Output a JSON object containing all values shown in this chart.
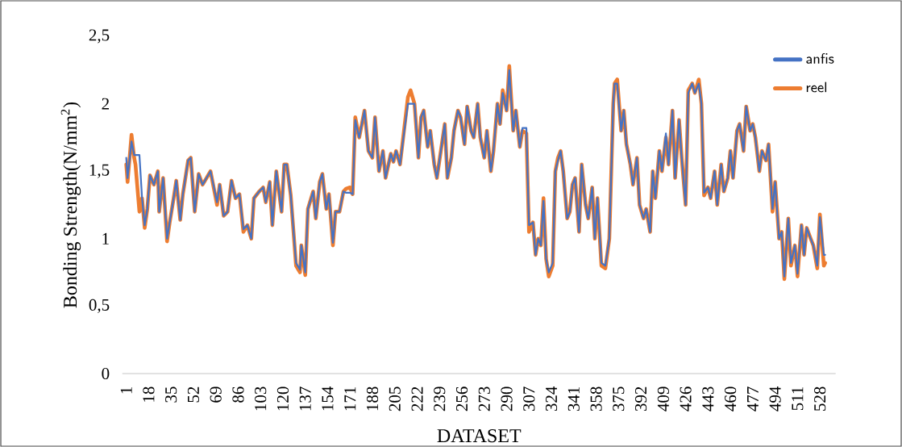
{
  "chart_data": {
    "type": "line",
    "xlabel": "DATASET",
    "ylabel": "Bonding  Strength(N/mm$^{2}$)",
    "x": [
      1,
      2,
      5,
      7,
      8,
      11,
      13,
      15,
      17,
      19,
      22,
      25,
      26,
      29,
      32,
      34,
      37,
      39,
      42,
      44,
      48,
      50,
      53,
      56,
      59,
      62,
      65,
      70,
      72,
      75,
      78,
      81,
      84,
      87,
      90,
      93,
      96,
      98,
      102,
      105,
      107,
      110,
      112,
      115,
      119,
      121,
      123,
      126,
      130,
      133,
      134,
      137,
      139,
      143,
      145,
      148,
      150,
      153,
      155,
      158,
      160,
      163,
      166,
      168,
      171,
      173,
      175,
      178,
      182,
      185,
      188,
      190,
      193,
      196,
      198,
      202,
      204,
      206,
      209,
      212,
      215,
      217,
      220,
      223,
      225,
      227,
      230,
      232,
      235,
      237,
      240,
      243,
      245,
      248,
      250,
      253,
      255,
      258,
      260,
      263,
      265,
      268,
      270,
      273,
      275,
      278,
      280,
      283,
      285,
      287,
      290,
      292,
      295,
      297,
      300,
      302,
      305,
      307,
      310,
      312,
      314,
      316,
      318,
      320,
      322,
      325,
      327,
      329,
      331,
      333,
      336,
      338,
      340,
      342,
      345,
      347,
      350,
      352,
      355,
      357,
      359,
      362,
      365,
      368,
      371,
      372,
      374,
      377,
      379,
      381,
      384,
      386,
      389,
      391,
      394,
      396,
      399,
      401,
      403,
      406,
      408,
      411,
      413,
      416,
      418,
      421,
      423,
      426,
      428,
      431,
      433,
      436,
      438,
      440,
      443,
      445,
      448,
      450,
      453,
      455,
      458,
      460,
      462,
      465,
      467,
      470,
      472,
      475,
      477,
      479,
      482,
      484,
      487,
      489,
      492,
      494,
      497,
      499,
      501,
      504,
      506,
      509,
      511,
      514,
      516,
      518,
      521,
      523,
      526,
      528,
      531,
      532
    ],
    "series": [
      {
        "name": "anfis",
        "color": "#4472c4",
        "values": [
          1.6,
          1.45,
          1.72,
          1.62,
          1.62,
          1.62,
          1.3,
          1.1,
          1.22,
          1.47,
          1.4,
          1.5,
          1.2,
          1.45,
          1.0,
          1.12,
          1.3,
          1.43,
          1.14,
          1.33,
          1.58,
          1.6,
          1.2,
          1.48,
          1.4,
          1.45,
          1.5,
          1.27,
          1.4,
          1.17,
          1.2,
          1.43,
          1.3,
          1.33,
          1.07,
          1.1,
          1.0,
          1.3,
          1.35,
          1.38,
          1.27,
          1.42,
          1.1,
          1.5,
          1.2,
          1.55,
          1.55,
          1.32,
          0.82,
          0.77,
          0.95,
          0.75,
          1.22,
          1.35,
          1.15,
          1.42,
          1.48,
          1.22,
          1.33,
          0.97,
          1.2,
          1.2,
          1.35,
          1.34,
          1.34,
          1.33,
          1.88,
          1.75,
          1.95,
          1.65,
          1.6,
          1.9,
          1.5,
          1.65,
          1.45,
          1.63,
          1.57,
          1.65,
          1.55,
          1.78,
          2.0,
          2.0,
          2.0,
          1.6,
          1.9,
          1.95,
          1.68,
          1.8,
          1.55,
          1.45,
          1.65,
          1.85,
          1.45,
          1.6,
          1.8,
          1.95,
          1.9,
          1.7,
          1.98,
          1.8,
          1.75,
          2.0,
          1.75,
          1.6,
          1.8,
          1.5,
          1.65,
          2.0,
          1.85,
          2.08,
          1.95,
          2.25,
          1.8,
          1.95,
          1.68,
          1.82,
          1.82,
          1.1,
          1.12,
          0.88,
          1.0,
          0.95,
          1.28,
          0.85,
          0.75,
          0.82,
          1.5,
          1.58,
          1.65,
          1.5,
          1.15,
          1.2,
          1.4,
          1.45,
          1.05,
          1.55,
          1.25,
          1.15,
          1.38,
          1.0,
          1.3,
          0.82,
          0.8,
          1.0,
          2.0,
          2.15,
          2.15,
          1.8,
          1.95,
          1.7,
          1.55,
          1.4,
          1.6,
          1.25,
          1.15,
          1.22,
          1.05,
          1.5,
          1.3,
          1.65,
          1.5,
          1.78,
          1.55,
          1.95,
          1.45,
          1.88,
          1.6,
          1.25,
          2.08,
          2.15,
          2.08,
          2.15,
          2.0,
          1.34,
          1.38,
          1.3,
          1.5,
          1.25,
          1.55,
          1.35,
          1.45,
          1.65,
          1.45,
          1.8,
          1.85,
          1.65,
          1.98,
          1.8,
          1.85,
          1.75,
          1.5,
          1.65,
          1.58,
          1.7,
          1.22,
          1.42,
          1.0,
          1.05,
          0.72,
          1.15,
          0.82,
          0.95,
          0.74,
          1.1,
          0.88,
          1.08,
          1.0,
          0.95,
          0.8,
          1.16,
          0.88,
          0.88
        ]
      },
      {
        "name": "reel",
        "color": "#ed7d31",
        "values": [
          1.55,
          1.42,
          1.77,
          1.6,
          1.55,
          1.2,
          1.3,
          1.08,
          1.22,
          1.47,
          1.4,
          1.5,
          1.2,
          1.45,
          0.98,
          1.12,
          1.3,
          1.43,
          1.14,
          1.33,
          1.58,
          1.6,
          1.2,
          1.48,
          1.4,
          1.45,
          1.5,
          1.25,
          1.4,
          1.17,
          1.2,
          1.43,
          1.3,
          1.33,
          1.05,
          1.1,
          1.0,
          1.3,
          1.35,
          1.38,
          1.27,
          1.42,
          1.1,
          1.5,
          1.2,
          1.55,
          1.55,
          1.32,
          0.8,
          0.75,
          0.95,
          0.73,
          1.22,
          1.35,
          1.15,
          1.42,
          1.48,
          1.22,
          1.33,
          0.95,
          1.2,
          1.2,
          1.35,
          1.37,
          1.38,
          1.33,
          1.9,
          1.75,
          1.95,
          1.65,
          1.6,
          1.9,
          1.5,
          1.65,
          1.45,
          1.63,
          1.57,
          1.65,
          1.55,
          1.8,
          2.05,
          2.1,
          2.0,
          1.6,
          1.9,
          1.95,
          1.68,
          1.8,
          1.55,
          1.45,
          1.65,
          1.85,
          1.45,
          1.6,
          1.8,
          1.95,
          1.9,
          1.7,
          1.98,
          1.8,
          1.75,
          2.0,
          1.75,
          1.6,
          1.8,
          1.5,
          1.65,
          2.0,
          1.85,
          2.1,
          1.95,
          2.28,
          1.8,
          1.95,
          1.68,
          1.8,
          1.78,
          1.05,
          1.12,
          0.88,
          1.0,
          0.95,
          1.3,
          0.85,
          0.72,
          0.8,
          1.5,
          1.6,
          1.65,
          1.5,
          1.15,
          1.2,
          1.4,
          1.45,
          1.05,
          1.55,
          1.25,
          1.15,
          1.38,
          1.0,
          1.3,
          0.8,
          0.78,
          1.0,
          2.0,
          2.15,
          2.18,
          1.8,
          1.95,
          1.7,
          1.55,
          1.4,
          1.6,
          1.25,
          1.15,
          1.22,
          1.05,
          1.5,
          1.3,
          1.65,
          1.5,
          1.75,
          1.55,
          1.95,
          1.45,
          1.88,
          1.6,
          1.25,
          2.1,
          2.15,
          2.08,
          2.18,
          2.0,
          1.32,
          1.38,
          1.3,
          1.5,
          1.25,
          1.55,
          1.35,
          1.45,
          1.65,
          1.45,
          1.8,
          1.85,
          1.65,
          1.98,
          1.8,
          1.85,
          1.75,
          1.5,
          1.65,
          1.58,
          1.7,
          1.2,
          1.42,
          1.0,
          1.05,
          0.7,
          1.15,
          0.8,
          0.95,
          0.72,
          1.1,
          0.88,
          1.08,
          1.0,
          0.95,
          0.78,
          1.18,
          0.8,
          0.82
        ]
      }
    ],
    "xlim": [
      -2,
      540
    ],
    "xticks": [
      1,
      18,
      35,
      52,
      69,
      86,
      103,
      120,
      137,
      154,
      171,
      188,
      205,
      222,
      239,
      256,
      273,
      290,
      307,
      324,
      341,
      358,
      375,
      392,
      409,
      426,
      443,
      460,
      477,
      494,
      511,
      528
    ],
    "ylim": [
      0,
      2.5
    ],
    "yticks": [
      0,
      {
        "value": 0.5,
        "label": "0,5"
      },
      1,
      {
        "value": 1.5,
        "label": "1,5"
      },
      2,
      {
        "value": 2.5,
        "label": "2,5"
      }
    ],
    "legend": "top right"
  }
}
